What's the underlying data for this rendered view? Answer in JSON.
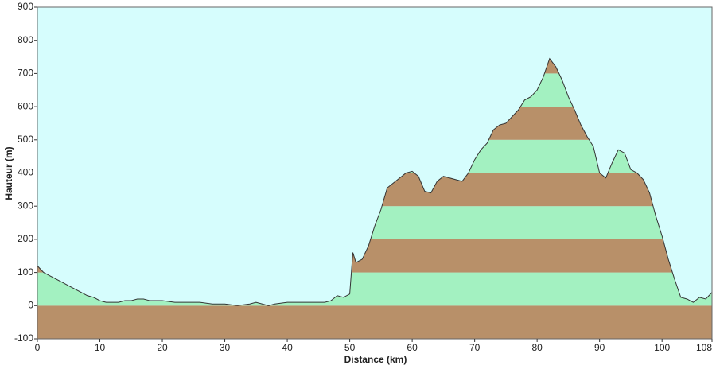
{
  "chart_data": {
    "type": "area",
    "x_label": "Distance  (km)",
    "y_label": "Hauteur (m)",
    "x": [
      0,
      1,
      2,
      3,
      4,
      5,
      6,
      7,
      8,
      9,
      10,
      11,
      12,
      13,
      14,
      15,
      16,
      17,
      18,
      19,
      20,
      22,
      24,
      26,
      28,
      30,
      32,
      34,
      35,
      36,
      37,
      38,
      40,
      42,
      44,
      46,
      47,
      48,
      49,
      50,
      50.5,
      51,
      52,
      53,
      54,
      55,
      56,
      57,
      58,
      59,
      60,
      61,
      62,
      63,
      64,
      65,
      66,
      67,
      68,
      69,
      70,
      71,
      72,
      73,
      74,
      75,
      76,
      77,
      78,
      79,
      80,
      81,
      82,
      83,
      84,
      85,
      86,
      87,
      88,
      89,
      90,
      91,
      92,
      93,
      94,
      95,
      96,
      97,
      98,
      99,
      100,
      101,
      102,
      103,
      104,
      105,
      106,
      107,
      108
    ],
    "values": [
      120,
      100,
      90,
      80,
      70,
      60,
      50,
      40,
      30,
      25,
      15,
      10,
      10,
      10,
      15,
      15,
      20,
      20,
      15,
      15,
      15,
      10,
      10,
      10,
      5,
      5,
      0,
      5,
      10,
      5,
      0,
      5,
      10,
      10,
      10,
      10,
      15,
      30,
      25,
      35,
      160,
      130,
      140,
      180,
      240,
      290,
      355,
      370,
      385,
      400,
      405,
      390,
      345,
      340,
      375,
      390,
      385,
      380,
      375,
      400,
      440,
      470,
      490,
      530,
      545,
      550,
      570,
      590,
      620,
      630,
      650,
      690,
      745,
      720,
      680,
      630,
      590,
      545,
      510,
      480,
      400,
      385,
      430,
      470,
      460,
      410,
      400,
      380,
      340,
      270,
      210,
      140,
      80,
      25,
      20,
      10,
      25,
      20,
      40
    ],
    "xlim": [
      0,
      108
    ],
    "xticks": [
      0,
      10,
      20,
      30,
      40,
      50,
      60,
      70,
      80,
      90,
      100,
      108
    ],
    "ylim": [
      -100,
      900
    ],
    "yticks": [
      -100,
      0,
      100,
      200,
      300,
      400,
      500,
      600,
      700,
      800,
      900
    ],
    "band_colors": [
      "#b89069",
      "#a3f1c1"
    ],
    "background": "#d6fdfd",
    "line_color": "#333333"
  }
}
